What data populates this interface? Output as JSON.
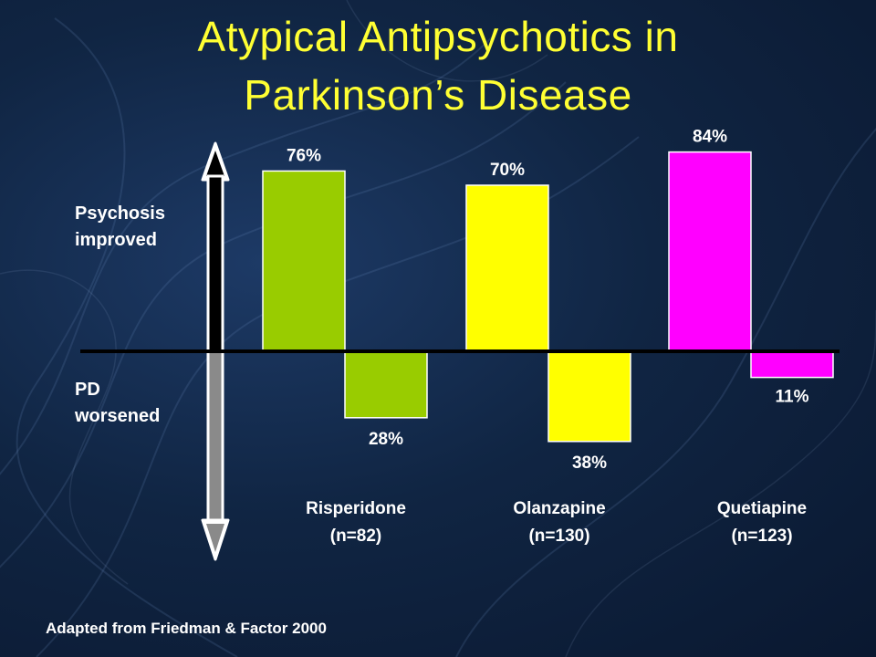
{
  "title_line_1": "Atypical Antipsychotics in",
  "title_line_2": "Parkinson’s Disease",
  "improved_label": [
    "Psychosis",
    "improved"
  ],
  "worsened_label": [
    "PD",
    "worsened"
  ],
  "source": "Adapted from Friedman & Factor  2000",
  "colors": {
    "title": "#ffff33",
    "text": "#ffffff",
    "background": "#102543"
  },
  "chart_data": {
    "type": "bar",
    "title": "Atypical Antipsychotics in Parkinson’s Disease",
    "categories": [
      {
        "name": "Risperidone",
        "n": "(n=82)",
        "color": "#99cc00"
      },
      {
        "name": "Olanzapine",
        "n": "(n=130)",
        "color": "#ffff00"
      },
      {
        "name": "Quetiapine",
        "n": "(n=123)",
        "color": "#ff00ff"
      }
    ],
    "series": [
      {
        "name": "Psychosis improved",
        "values": [
          76,
          70,
          84
        ],
        "labels": [
          "76%",
          "70%",
          "84%"
        ],
        "direction": "up"
      },
      {
        "name": "PD worsened",
        "values": [
          28,
          38,
          11
        ],
        "labels": [
          "28%",
          "38%",
          "11%"
        ],
        "direction": "down"
      }
    ],
    "unit": "%",
    "ylim": [
      -38,
      84
    ],
    "grid": false,
    "legend": "none"
  }
}
